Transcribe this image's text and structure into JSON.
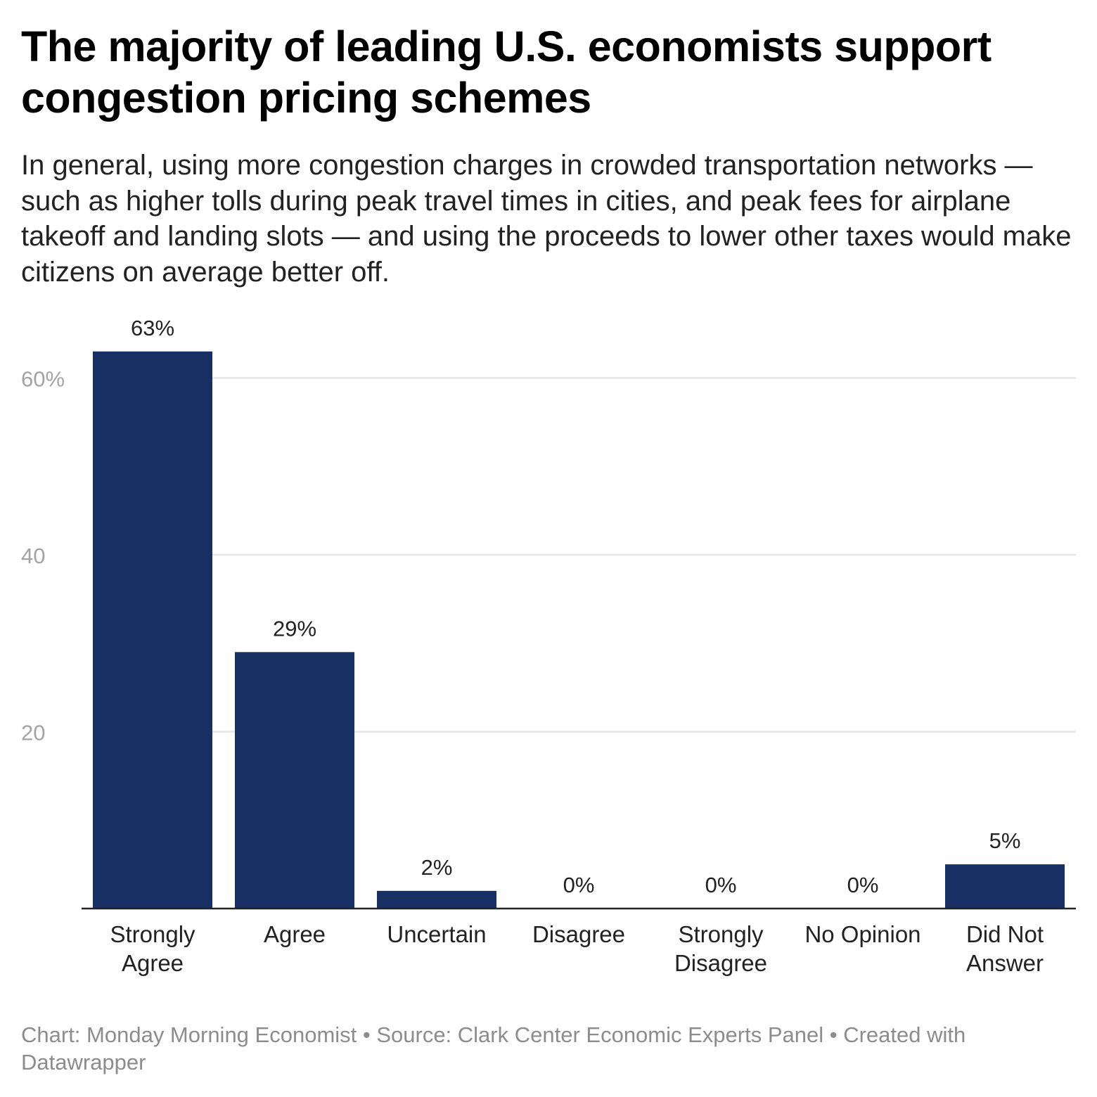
{
  "header": {
    "title": "The majority of leading U.S. economists support congestion pricing schemes",
    "subtitle": "In general, using more congestion charges in crowded transportation networks — such as higher tolls during peak travel times in cities, and peak fees for airplane takeoff and landing slots — and using the proceeds to lower other taxes would make citizens on average better off."
  },
  "chart_data": {
    "type": "bar",
    "title": "The majority of leading U.S. economists support congestion pricing schemes",
    "xlabel": "",
    "ylabel": "",
    "categories": [
      [
        "Strongly",
        "Agree"
      ],
      [
        "Agree"
      ],
      [
        "Uncertain"
      ],
      [
        "Disagree"
      ],
      [
        "Strongly",
        "Disagree"
      ],
      [
        "No Opinion"
      ],
      [
        "Did Not",
        "Answer"
      ]
    ],
    "values": [
      63,
      29,
      2,
      0,
      0,
      0,
      5
    ],
    "value_labels": [
      "63%",
      "29%",
      "2%",
      "0%",
      "0%",
      "0%",
      "5%"
    ],
    "ylim": [
      0,
      66
    ],
    "yticks": [
      {
        "value": 20,
        "label": "20"
      },
      {
        "value": 40,
        "label": "40"
      },
      {
        "value": 60,
        "label": "60%"
      }
    ],
    "grid": true,
    "bar_color": "#182f64",
    "grid_color": "#e5e5e5",
    "tick_label_color": "#a3a3a3"
  },
  "footer": {
    "credit": "Chart: Monday Morning Economist • Source: Clark Center Economic Experts Panel • Created with Datawrapper"
  }
}
